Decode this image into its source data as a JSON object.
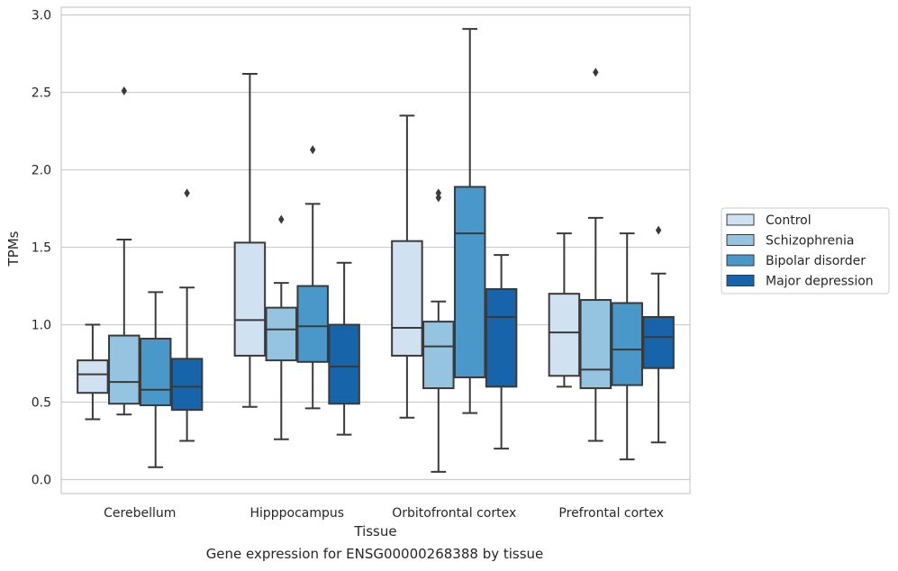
{
  "caption": "Gene expression for ENSG00000268388 by tissue",
  "chart_data": {
    "type": "box",
    "xlabel": "Tissue",
    "ylabel": "TPMs",
    "ylim": [
      -0.09,
      3.05
    ],
    "yticks": [
      "0.0",
      "0.5",
      "1.0",
      "1.5",
      "2.0",
      "2.5",
      "3.0"
    ],
    "grid": true,
    "legend_position": "right",
    "categories": [
      "Cerebellum",
      "Hipppocampus",
      "Orbitofrontal cortex",
      "Prefrontal cortex"
    ],
    "series": [
      {
        "name": "Control",
        "color": "#d0e1f2",
        "boxes": [
          {
            "whislo": 0.39,
            "q1": 0.56,
            "med": 0.68,
            "q3": 0.77,
            "whishi": 1.0,
            "fliers": []
          },
          {
            "whislo": 0.47,
            "q1": 0.8,
            "med": 1.03,
            "q3": 1.53,
            "whishi": 2.62,
            "fliers": []
          },
          {
            "whislo": 0.4,
            "q1": 0.8,
            "med": 0.98,
            "q3": 1.54,
            "whishi": 2.35,
            "fliers": []
          },
          {
            "whislo": 0.6,
            "q1": 0.67,
            "med": 0.95,
            "q3": 1.2,
            "whishi": 1.59,
            "fliers": []
          }
        ]
      },
      {
        "name": "Schizophrenia",
        "color": "#94c4df",
        "boxes": [
          {
            "whislo": 0.42,
            "q1": 0.49,
            "med": 0.63,
            "q3": 0.93,
            "whishi": 1.55,
            "fliers": [
              2.51
            ]
          },
          {
            "whislo": 0.26,
            "q1": 0.77,
            "med": 0.97,
            "q3": 1.11,
            "whishi": 1.27,
            "fliers": [
              1.68
            ]
          },
          {
            "whislo": 0.05,
            "q1": 0.59,
            "med": 0.86,
            "q3": 1.02,
            "whishi": 1.15,
            "fliers": [
              1.82,
              1.85
            ]
          },
          {
            "whislo": 0.25,
            "q1": 0.59,
            "med": 0.71,
            "q3": 1.16,
            "whishi": 1.69,
            "fliers": [
              2.63
            ]
          }
        ]
      },
      {
        "name": "Bipolar disorder",
        "color": "#4a98c9",
        "boxes": [
          {
            "whislo": 0.08,
            "q1": 0.48,
            "med": 0.58,
            "q3": 0.91,
            "whishi": 1.21,
            "fliers": []
          },
          {
            "whislo": 0.46,
            "q1": 0.76,
            "med": 0.99,
            "q3": 1.25,
            "whishi": 1.78,
            "fliers": [
              2.13
            ]
          },
          {
            "whislo": 0.43,
            "q1": 0.66,
            "med": 1.59,
            "q3": 1.89,
            "whishi": 2.91,
            "fliers": []
          },
          {
            "whislo": 0.13,
            "q1": 0.61,
            "med": 0.84,
            "q3": 1.14,
            "whishi": 1.59,
            "fliers": []
          }
        ]
      },
      {
        "name": "Major depression",
        "color": "#1764ab",
        "boxes": [
          {
            "whislo": 0.25,
            "q1": 0.45,
            "med": 0.6,
            "q3": 0.78,
            "whishi": 1.24,
            "fliers": [
              1.85
            ]
          },
          {
            "whislo": 0.29,
            "q1": 0.49,
            "med": 0.73,
            "q3": 1.0,
            "whishi": 1.4,
            "fliers": []
          },
          {
            "whislo": 0.2,
            "q1": 0.6,
            "med": 1.05,
            "q3": 1.23,
            "whishi": 1.45,
            "fliers": []
          },
          {
            "whislo": 0.24,
            "q1": 0.72,
            "med": 0.92,
            "q3": 1.05,
            "whishi": 1.33,
            "fliers": [
              1.61
            ]
          }
        ]
      }
    ]
  }
}
